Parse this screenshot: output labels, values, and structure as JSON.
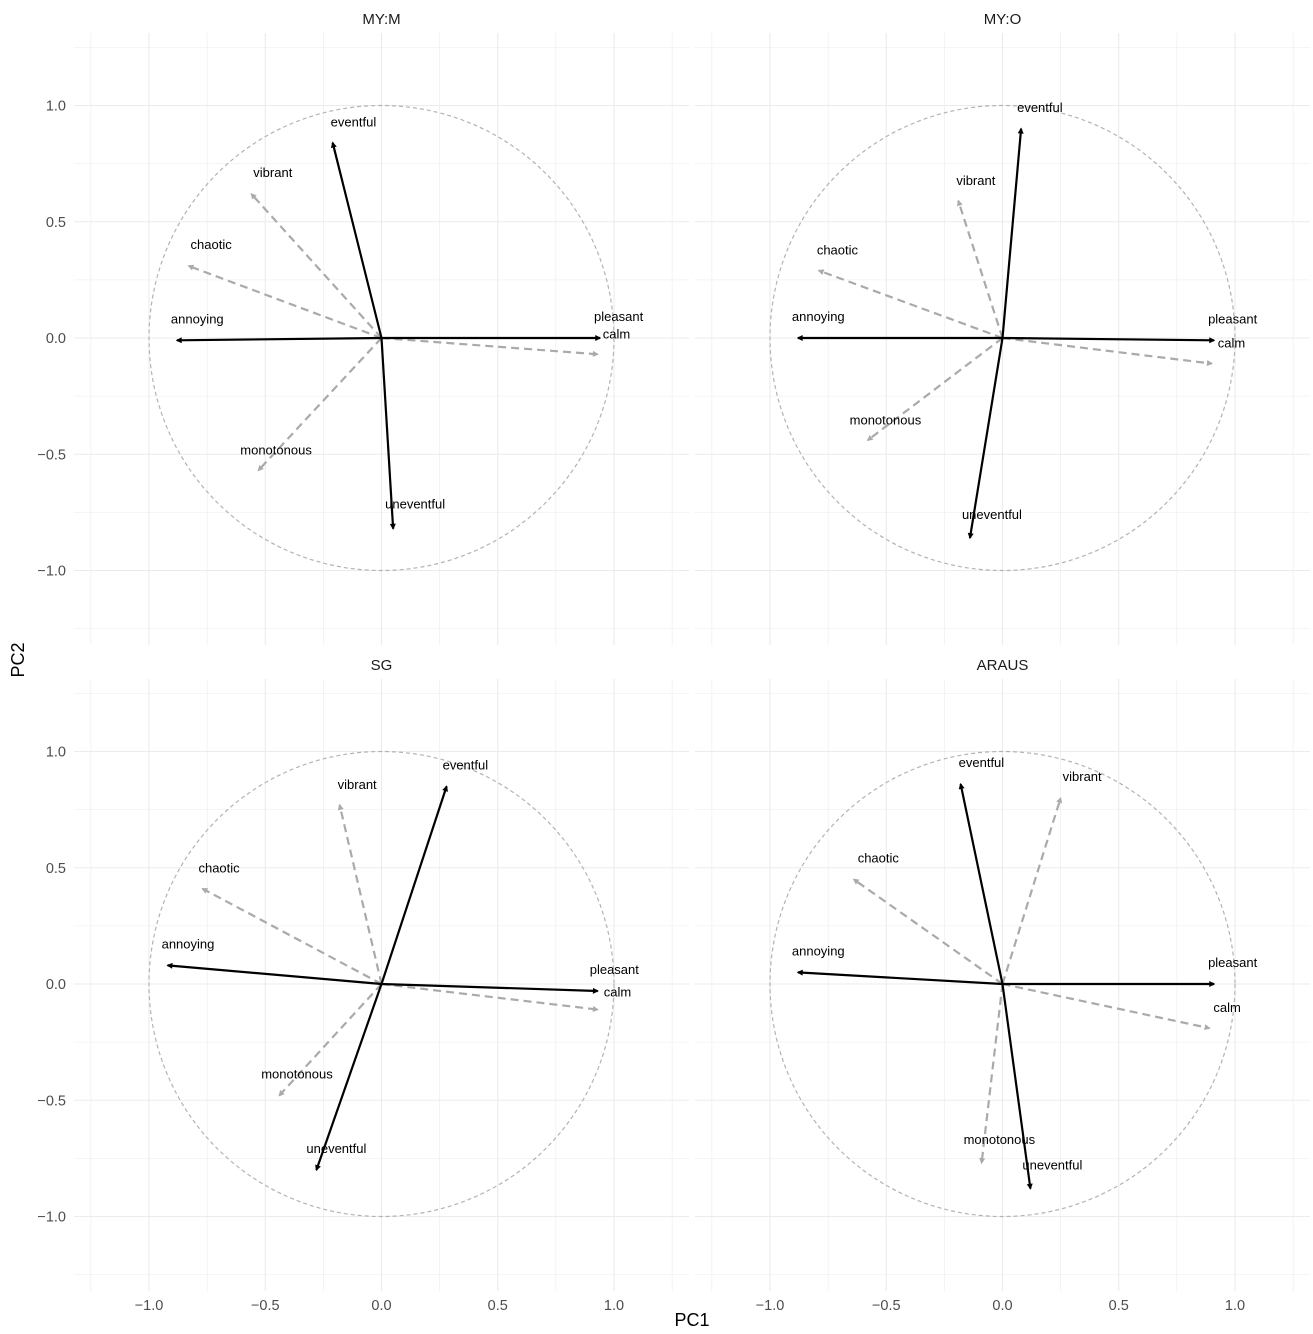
{
  "chart_data": {
    "type": "vector",
    "xlabel": "PC1",
    "ylabel": "PC2",
    "xlim": [
      -1.25,
      1.25
    ],
    "ylim": [
      -1.25,
      1.25
    ],
    "x_ticks": [
      -1.0,
      -0.5,
      0.0,
      0.5,
      1.0
    ],
    "y_ticks": [
      -1.0,
      -0.5,
      0.0,
      0.5,
      1.0
    ],
    "x_tick_labels": [
      "−1.0",
      "−0.5",
      "0.0",
      "0.5",
      "1.0"
    ],
    "y_tick_labels": [
      "−1.0",
      "−0.5",
      "0.0",
      "0.5",
      "1.0"
    ],
    "grid": true,
    "unit_circle": true,
    "colors": {
      "primary": "#000000",
      "secondary": "#aaaaaa",
      "circle": "#b3b3b3",
      "grid": "#ebebeb"
    },
    "panels": [
      {
        "title": "MY:M",
        "vectors": [
          {
            "label": "pleasant",
            "x": 0.94,
            "y": 0.0,
            "style": "solid"
          },
          {
            "label": "annoying",
            "x": -0.88,
            "y": -0.01,
            "style": "solid"
          },
          {
            "label": "eventful",
            "x": -0.21,
            "y": 0.84,
            "style": "solid"
          },
          {
            "label": "uneventful",
            "x": 0.05,
            "y": -0.82,
            "style": "solid"
          },
          {
            "label": "calm",
            "x": 0.93,
            "y": -0.07,
            "style": "dashed"
          },
          {
            "label": "vibrant",
            "x": -0.56,
            "y": 0.62,
            "style": "dashed"
          },
          {
            "label": "chaotic",
            "x": -0.83,
            "y": 0.31,
            "style": "dashed"
          },
          {
            "label": "monotonous",
            "x": -0.53,
            "y": -0.57,
            "style": "dashed"
          }
        ]
      },
      {
        "title": "MY:O",
        "vectors": [
          {
            "label": "pleasant",
            "x": 0.91,
            "y": -0.01,
            "style": "solid"
          },
          {
            "label": "annoying",
            "x": -0.88,
            "y": 0.0,
            "style": "solid"
          },
          {
            "label": "eventful",
            "x": 0.08,
            "y": 0.9,
            "style": "solid"
          },
          {
            "label": "uneventful",
            "x": -0.14,
            "y": -0.86,
            "style": "solid"
          },
          {
            "label": "calm",
            "x": 0.9,
            "y": -0.11,
            "style": "dashed"
          },
          {
            "label": "vibrant",
            "x": -0.19,
            "y": 0.59,
            "style": "dashed"
          },
          {
            "label": "chaotic",
            "x": -0.79,
            "y": 0.29,
            "style": "dashed"
          },
          {
            "label": "monotonous",
            "x": -0.58,
            "y": -0.44,
            "style": "dashed"
          }
        ]
      },
      {
        "title": "SG",
        "vectors": [
          {
            "label": "pleasant",
            "x": 0.93,
            "y": -0.03,
            "style": "solid"
          },
          {
            "label": "annoying",
            "x": -0.92,
            "y": 0.08,
            "style": "solid"
          },
          {
            "label": "eventful",
            "x": 0.28,
            "y": 0.85,
            "style": "solid"
          },
          {
            "label": "uneventful",
            "x": -0.28,
            "y": -0.8,
            "style": "solid"
          },
          {
            "label": "calm",
            "x": 0.93,
            "y": -0.11,
            "style": "dashed"
          },
          {
            "label": "vibrant",
            "x": -0.18,
            "y": 0.77,
            "style": "dashed"
          },
          {
            "label": "chaotic",
            "x": -0.77,
            "y": 0.41,
            "style": "dashed"
          },
          {
            "label": "monotonous",
            "x": -0.44,
            "y": -0.48,
            "style": "dashed"
          }
        ]
      },
      {
        "title": "ARAUS",
        "vectors": [
          {
            "label": "pleasant",
            "x": 0.91,
            "y": 0.0,
            "style": "solid"
          },
          {
            "label": "annoying",
            "x": -0.88,
            "y": 0.05,
            "style": "solid"
          },
          {
            "label": "eventful",
            "x": -0.18,
            "y": 0.86,
            "style": "solid"
          },
          {
            "label": "uneventful",
            "x": 0.12,
            "y": -0.88,
            "style": "solid"
          },
          {
            "label": "calm",
            "x": 0.89,
            "y": -0.19,
            "style": "dashed"
          },
          {
            "label": "vibrant",
            "x": 0.25,
            "y": 0.8,
            "style": "dashed"
          },
          {
            "label": "chaotic",
            "x": -0.64,
            "y": 0.45,
            "style": "dashed"
          },
          {
            "label": "monotonous",
            "x": -0.09,
            "y": -0.77,
            "style": "dashed"
          }
        ]
      }
    ]
  }
}
